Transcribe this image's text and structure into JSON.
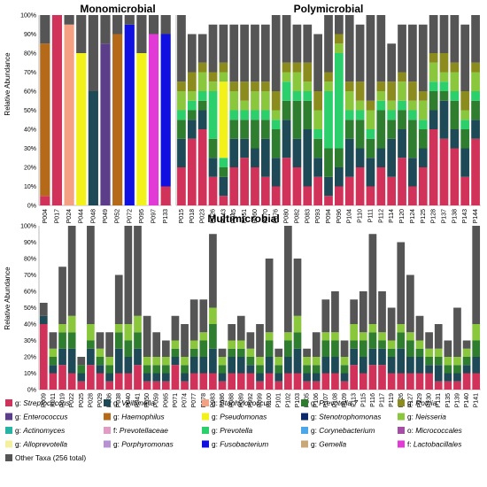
{
  "chart_data": [
    {
      "type": "bar",
      "title": "Monomicrobial",
      "ylabel": "Relative Abundance",
      "ylim": [
        0,
        100
      ],
      "ytick_labels": [
        "0%",
        "10%",
        "20%",
        "30%",
        "40%",
        "50%",
        "60%",
        "70%",
        "80%",
        "90%",
        "100%"
      ],
      "stacked": true,
      "categories": [
        "P004",
        "P017",
        "P024",
        "P044",
        "P048",
        "P049",
        "P052",
        "P072",
        "P095",
        "P097",
        "P133"
      ],
      "series": [
        {
          "name": "Streptococcus",
          "values": [
            5,
            100,
            0,
            0,
            0,
            0,
            0,
            0,
            0,
            0,
            10
          ]
        },
        {
          "name": "Enterococcus",
          "values": [
            0,
            0,
            0,
            0,
            0,
            85,
            0,
            0,
            0,
            0,
            0
          ]
        },
        {
          "name": "Haemophilus",
          "values": [
            80,
            0,
            0,
            0,
            0,
            0,
            90,
            0,
            0,
            0,
            0
          ]
        },
        {
          "name": "Staphylococcus",
          "values": [
            0,
            0,
            95,
            0,
            0,
            0,
            0,
            0,
            0,
            0,
            0
          ]
        },
        {
          "name": "Pseudomonas",
          "values": [
            0,
            0,
            0,
            80,
            0,
            0,
            0,
            0,
            80,
            0,
            0
          ]
        },
        {
          "name": "Veillonella",
          "values": [
            0,
            0,
            0,
            0,
            60,
            0,
            0,
            0,
            0,
            0,
            0
          ]
        },
        {
          "name": "Prevotella 7",
          "values": [
            0,
            0,
            0,
            0,
            0,
            0,
            0,
            0,
            0,
            0,
            0
          ]
        },
        {
          "name": "Stenotrophomonas",
          "values": [
            0,
            0,
            0,
            0,
            0,
            0,
            0,
            0,
            0,
            0,
            0
          ]
        },
        {
          "name": "Fusobacterium",
          "values": [
            0,
            0,
            0,
            0,
            0,
            0,
            0,
            95,
            0,
            0,
            80
          ]
        },
        {
          "name": "Prevotella",
          "values": [
            0,
            0,
            0,
            0,
            0,
            0,
            0,
            0,
            0,
            0,
            0
          ]
        },
        {
          "name": "Lactobacillales",
          "values": [
            0,
            0,
            0,
            0,
            0,
            0,
            0,
            0,
            0,
            90,
            0
          ]
        },
        {
          "name": "Other Taxa",
          "values": [
            15,
            0,
            5,
            20,
            40,
            15,
            10,
            5,
            20,
            10,
            10
          ]
        }
      ]
    },
    {
      "type": "bar",
      "title": "Polymicrobial",
      "ylim": [
        0,
        100
      ],
      "stacked": true,
      "categories": [
        "P015",
        "P018",
        "P023",
        "P026",
        "P043",
        "P045",
        "P051",
        "P060",
        "P070",
        "P076",
        "P080",
        "P082",
        "P083",
        "P093",
        "P094",
        "P096",
        "P104",
        "P110",
        "P111",
        "P112",
        "P114",
        "P120",
        "P124",
        "P125",
        "P128",
        "P137",
        "P138",
        "P143",
        "P144"
      ],
      "series": [
        {
          "name": "Streptococcus",
          "values": [
            20,
            35,
            40,
            15,
            5,
            20,
            25,
            20,
            15,
            10,
            25,
            20,
            10,
            15,
            5,
            10,
            15,
            20,
            10,
            20,
            15,
            25,
            10,
            20,
            40,
            35,
            30,
            15,
            35
          ]
        },
        {
          "name": "Veillonella",
          "values": [
            15,
            10,
            10,
            10,
            10,
            15,
            10,
            10,
            20,
            15,
            20,
            15,
            30,
            10,
            10,
            10,
            20,
            10,
            15,
            10,
            20,
            15,
            15,
            10,
            10,
            20,
            10,
            15,
            10
          ]
        },
        {
          "name": "Prevotella 7",
          "values": [
            10,
            5,
            5,
            10,
            5,
            10,
            10,
            15,
            10,
            15,
            10,
            20,
            15,
            10,
            15,
            10,
            10,
            15,
            10,
            20,
            10,
            10,
            20,
            10,
            10,
            5,
            15,
            10,
            10
          ]
        },
        {
          "name": "Prevotella",
          "values": [
            5,
            5,
            5,
            25,
            5,
            5,
            5,
            5,
            5,
            5,
            10,
            5,
            5,
            5,
            30,
            50,
            5,
            5,
            5,
            5,
            5,
            5,
            5,
            5,
            5,
            5,
            5,
            5,
            5
          ]
        },
        {
          "name": "Pseudomonas",
          "values": [
            0,
            0,
            0,
            0,
            40,
            0,
            0,
            0,
            0,
            0,
            0,
            0,
            0,
            0,
            0,
            0,
            0,
            0,
            0,
            0,
            0,
            0,
            0,
            0,
            0,
            0,
            0,
            0,
            0
          ]
        },
        {
          "name": "Neisseria",
          "values": [
            10,
            5,
            10,
            5,
            5,
            10,
            5,
            10,
            10,
            5,
            5,
            10,
            5,
            10,
            5,
            5,
            10,
            5,
            10,
            5,
            5,
            10,
            5,
            10,
            10,
            5,
            10,
            5,
            10
          ]
        },
        {
          "name": "Rothia",
          "values": [
            5,
            10,
            5,
            5,
            5,
            5,
            10,
            5,
            5,
            10,
            5,
            5,
            10,
            10,
            5,
            5,
            5,
            10,
            5,
            5,
            10,
            5,
            10,
            5,
            5,
            10,
            5,
            10,
            5
          ]
        },
        {
          "name": "Other Taxa",
          "values": [
            35,
            20,
            15,
            25,
            20,
            30,
            30,
            30,
            30,
            40,
            25,
            20,
            20,
            30,
            30,
            10,
            35,
            30,
            45,
            35,
            20,
            25,
            30,
            35,
            20,
            20,
            25,
            35,
            25
          ]
        }
      ]
    },
    {
      "type": "bar",
      "title": "Multimicrobial",
      "ylabel": "Relative Abundance",
      "ylim": [
        0,
        100
      ],
      "ytick_labels": [
        "0%",
        "10%",
        "20%",
        "30%",
        "40%",
        "50%",
        "60%",
        "70%",
        "80%",
        "90%",
        "100%"
      ],
      "stacked": true,
      "categories": [
        "P009",
        "P011",
        "P019",
        "P022",
        "P025",
        "P028",
        "P029",
        "P036",
        "P038",
        "P040",
        "P041",
        "P050",
        "P059",
        "P065",
        "P071",
        "P074",
        "P077",
        "P078",
        "P083",
        "P086",
        "P088",
        "P089",
        "P092",
        "P099",
        "P100",
        "P101",
        "P102",
        "P103",
        "P105",
        "P106",
        "P107",
        "P108",
        "P109",
        "P113",
        "P115",
        "P116",
        "P117",
        "P119",
        "P126",
        "P127",
        "P129",
        "P130",
        "P131",
        "P135",
        "P139",
        "P140",
        "P141"
      ],
      "series": [
        {
          "name": "Streptococcus",
          "values": [
            40,
            10,
            15,
            10,
            5,
            15,
            10,
            5,
            10,
            10,
            15,
            5,
            5,
            5,
            15,
            5,
            10,
            10,
            10,
            5,
            10,
            10,
            10,
            5,
            10,
            5,
            10,
            10,
            5,
            5,
            10,
            10,
            5,
            15,
            10,
            15,
            15,
            10,
            10,
            10,
            10,
            10,
            5,
            5,
            5,
            10,
            10
          ]
        },
        {
          "name": "Veillonella",
          "values": [
            5,
            5,
            10,
            15,
            5,
            10,
            5,
            5,
            15,
            10,
            10,
            5,
            5,
            5,
            5,
            5,
            10,
            10,
            15,
            5,
            10,
            10,
            5,
            5,
            10,
            5,
            10,
            15,
            5,
            5,
            10,
            10,
            5,
            10,
            10,
            10,
            10,
            10,
            15,
            10,
            10,
            5,
            10,
            5,
            5,
            5,
            10
          ]
        },
        {
          "name": "Prevotella 7",
          "values": [
            0,
            5,
            10,
            10,
            5,
            5,
            5,
            5,
            10,
            10,
            10,
            5,
            5,
            5,
            5,
            5,
            5,
            10,
            15,
            5,
            5,
            5,
            5,
            5,
            10,
            5,
            10,
            10,
            5,
            5,
            10,
            10,
            5,
            5,
            10,
            10,
            5,
            5,
            10,
            10,
            5,
            5,
            5,
            5,
            5,
            5,
            10
          ]
        },
        {
          "name": "Neisseria",
          "values": [
            0,
            5,
            5,
            10,
            0,
            10,
            5,
            5,
            5,
            10,
            10,
            5,
            5,
            5,
            5,
            5,
            5,
            5,
            10,
            5,
            5,
            5,
            5,
            5,
            5,
            5,
            5,
            10,
            5,
            5,
            5,
            5,
            5,
            10,
            5,
            5,
            5,
            5,
            5,
            5,
            5,
            5,
            5,
            5,
            5,
            5,
            10
          ]
        },
        {
          "name": "Other Taxa",
          "values": [
            8,
            10,
            35,
            55,
            5,
            60,
            10,
            15,
            30,
            60,
            55,
            25,
            15,
            10,
            15,
            20,
            25,
            20,
            45,
            5,
            10,
            15,
            10,
            20,
            45,
            5,
            65,
            35,
            5,
            15,
            20,
            25,
            10,
            15,
            25,
            55,
            25,
            20,
            50,
            35,
            15,
            10,
            15,
            10,
            30,
            5,
            60
          ]
        }
      ]
    }
  ],
  "legend": [
    {
      "prefix": "g:",
      "name": "Streptococcus",
      "color": "#d1325a"
    },
    {
      "prefix": "g:",
      "name": "Veillonella",
      "color": "#1d4a56"
    },
    {
      "prefix": "g:",
      "name": "Staphylococcus",
      "color": "#f4a183"
    },
    {
      "prefix": "g:",
      "name": "Prevotella 7",
      "color": "#2f7d2f"
    },
    {
      "prefix": "g:",
      "name": "Rothia",
      "color": "#8c8c1e"
    },
    {
      "prefix": "g:",
      "name": "Enterococcus",
      "color": "#5b3d8a"
    },
    {
      "prefix": "g:",
      "name": "Haemophilus",
      "color": "#b56a1a"
    },
    {
      "prefix": "g:",
      "name": "Pseudomonas",
      "color": "#f2f21a"
    },
    {
      "prefix": "g:",
      "name": "Stenotrophomonas",
      "color": "#0c2a6b"
    },
    {
      "prefix": "g:",
      "name": "Neisseria",
      "color": "#8ac73c"
    },
    {
      "prefix": "g:",
      "name": "Actinomyces",
      "color": "#28b4a4"
    },
    {
      "prefix": "f:",
      "name": "Prevotellaceae",
      "color": "#e29bc5"
    },
    {
      "prefix": "g:",
      "name": "Prevotella",
      "color": "#2bcf6b"
    },
    {
      "prefix": "g:",
      "name": "Corynebacterium",
      "color": "#4da6e8"
    },
    {
      "prefix": "o:",
      "name": "Micrococcales",
      "color": "#a64ea6"
    },
    {
      "prefix": "g:",
      "name": "Alloprevotella",
      "color": "#f5f0a0"
    },
    {
      "prefix": "g:",
      "name": "Porphyromonas",
      "color": "#b890d4"
    },
    {
      "prefix": "g:",
      "name": "Fusobacterium",
      "color": "#1010e0"
    },
    {
      "prefix": "g:",
      "name": "Gemella",
      "color": "#c8a878"
    },
    {
      "prefix": "f:",
      "name": "Lactobacillales",
      "color": "#e23ad6"
    },
    {
      "prefix": "",
      "name": "Other Taxa (256 total)",
      "color": "#555555"
    }
  ]
}
